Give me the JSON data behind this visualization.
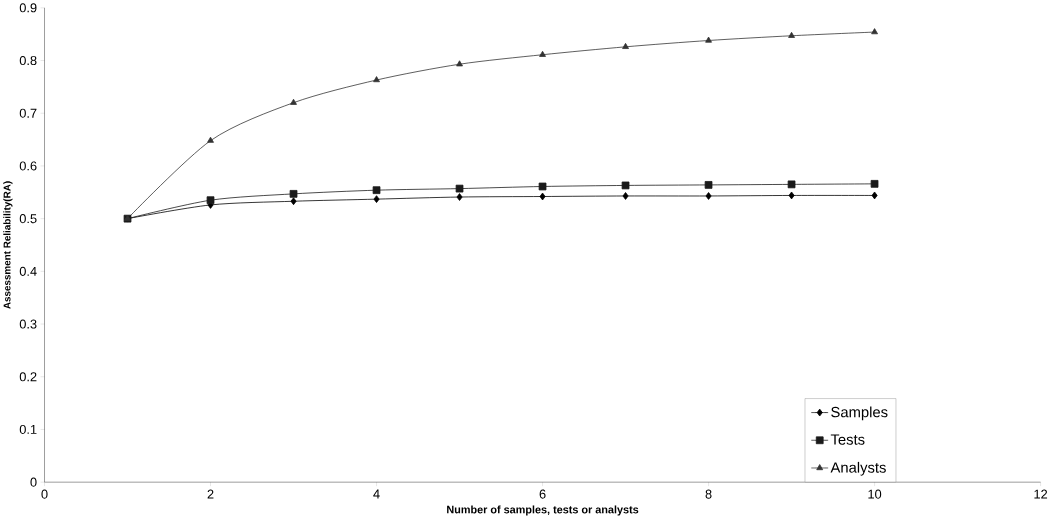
{
  "chart_data": {
    "type": "line",
    "xlabel": "Number of samples, tests or analysts",
    "ylabel": "Assessment Reliability(RA)",
    "x": [
      1,
      2,
      3,
      4,
      5,
      6,
      7,
      8,
      9,
      10
    ],
    "series": [
      {
        "name": "Samples",
        "color": "#000000",
        "marker": "diamond",
        "values": [
          0.5,
          0.526,
          0.533,
          0.537,
          0.541,
          0.542,
          0.543,
          0.543,
          0.544,
          0.544
        ]
      },
      {
        "name": "Tests",
        "color": "#1a1a1a",
        "marker": "square",
        "values": [
          0.5,
          0.535,
          0.547,
          0.554,
          0.557,
          0.561,
          0.563,
          0.564,
          0.565,
          0.566
        ]
      },
      {
        "name": "Analysts",
        "color": "#333333",
        "marker": "triangle",
        "values": [
          0.5,
          0.648,
          0.72,
          0.763,
          0.793,
          0.811,
          0.826,
          0.838,
          0.847,
          0.854
        ]
      }
    ],
    "xlim": [
      0,
      12
    ],
    "xticks": [
      0,
      2,
      4,
      6,
      8,
      10,
      12
    ],
    "ylim": [
      0,
      0.9
    ],
    "yticks": [
      0,
      0.1,
      0.2,
      0.3,
      0.4,
      0.5,
      0.6,
      0.7,
      0.8,
      0.9
    ],
    "grid": false,
    "legend": "bottom right",
    "line_style": "solid"
  }
}
